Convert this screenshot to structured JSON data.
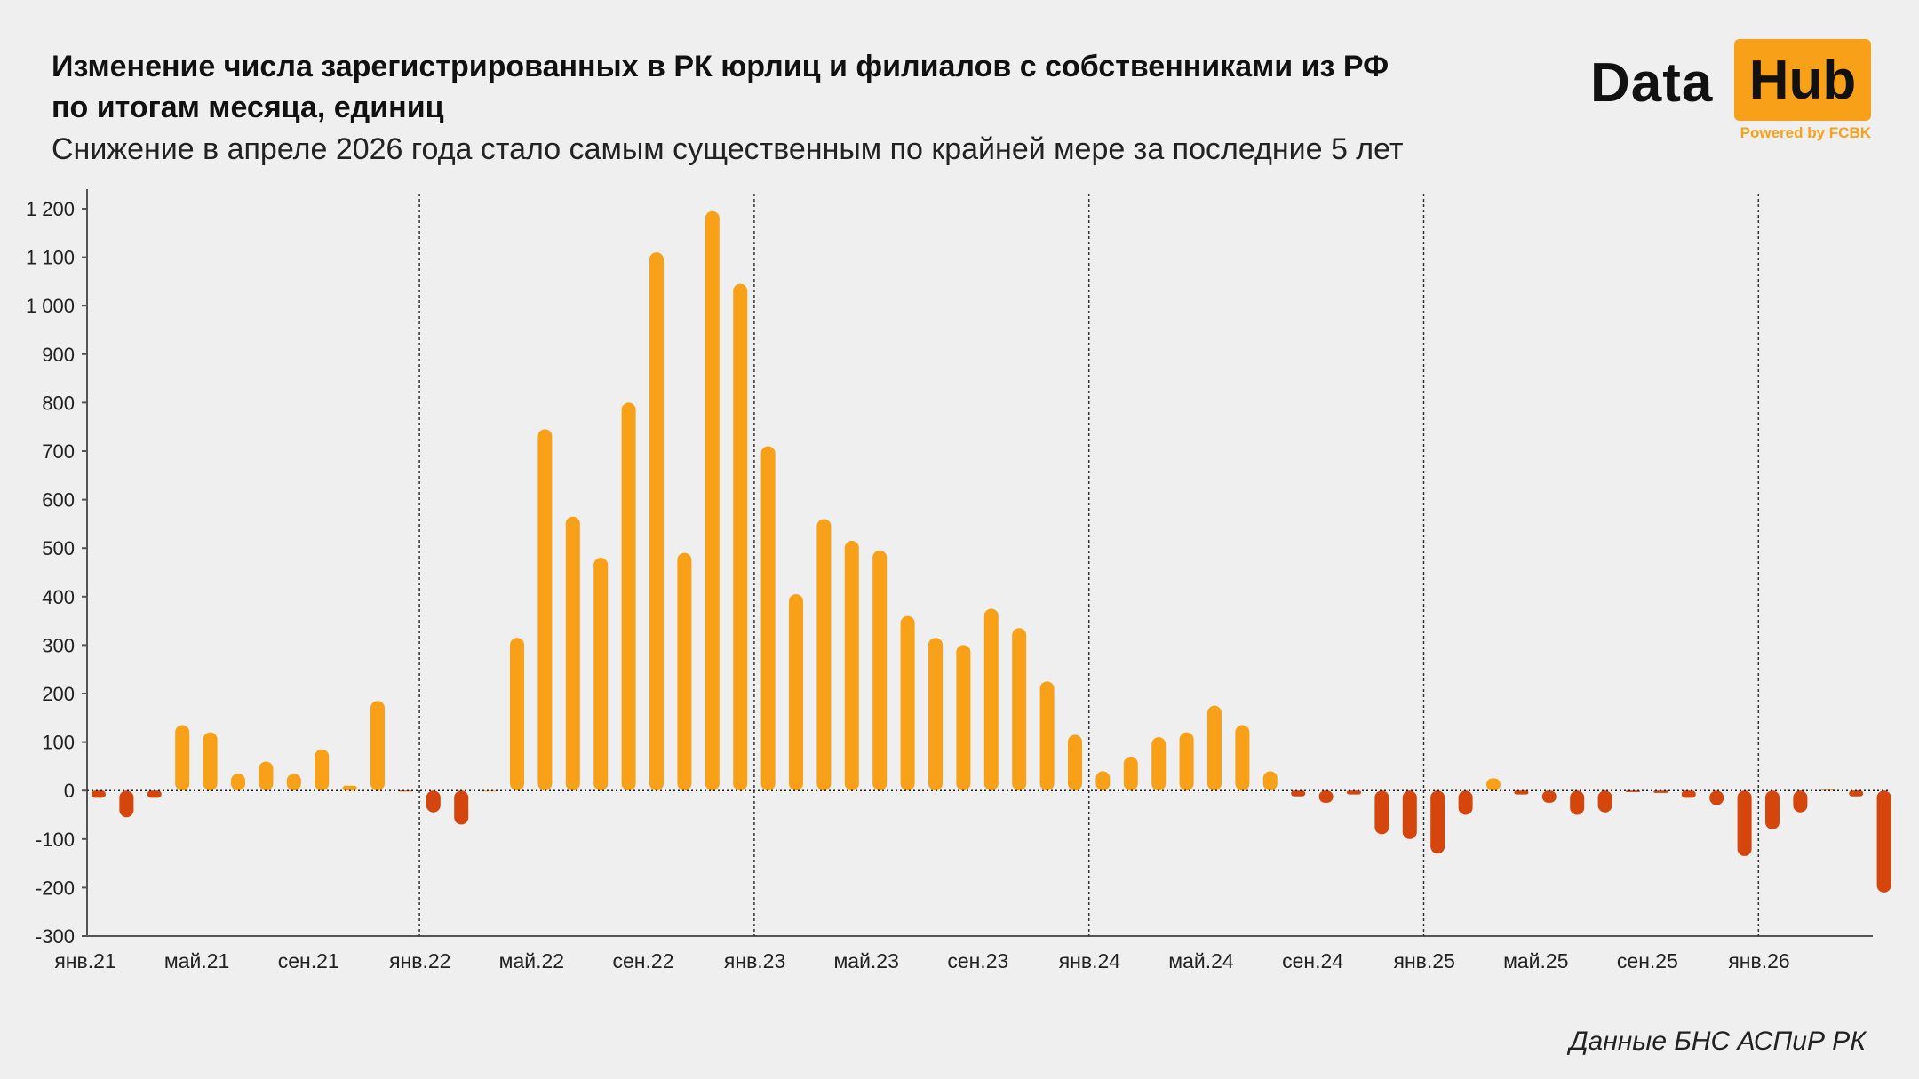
{
  "header": {
    "title_line1": "Изменение числа зарегистрированных в РК юрлиц и филиалов с собственниками из РФ",
    "title_line2": "по итогам месяца, единиц",
    "subtitle": "Снижение в апреле 2026 года стало самым существенным по крайней мере за последние 5 лет"
  },
  "logo": {
    "word1": "Data",
    "word2": "Hub",
    "tagline": "Powered by FCBK"
  },
  "source": "Данные БНС АСПиР РК",
  "colors": {
    "positive": "#f7a018",
    "negative": "#d4460c",
    "background": "#efefef",
    "axis": "#555555"
  },
  "chart_data": {
    "type": "bar",
    "title": "Изменение числа зарегистрированных в РК юрлиц и филиалов с собственниками из РФ по итогам месяца, единиц",
    "ylim": [
      -300,
      1200
    ],
    "yticks": [
      1200,
      1100,
      1000,
      900,
      800,
      700,
      600,
      500,
      400,
      300,
      200,
      100,
      0,
      -100,
      -200,
      -300
    ],
    "ytick_labels": [
      "1 200",
      "1 100",
      "1 000",
      "900",
      "800",
      "700",
      "600",
      "500",
      "400",
      "300",
      "200",
      "100",
      "0",
      "-100",
      "-200",
      "-300"
    ],
    "grid": false,
    "year_separators_at_index": [
      12,
      24,
      36,
      48,
      60
    ],
    "xtick_labels": [
      {
        "index": 0,
        "label": "янв.21"
      },
      {
        "index": 4,
        "label": "май.21"
      },
      {
        "index": 8,
        "label": "сен.21"
      },
      {
        "index": 12,
        "label": "янв.22"
      },
      {
        "index": 16,
        "label": "май.22"
      },
      {
        "index": 20,
        "label": "сен.22"
      },
      {
        "index": 24,
        "label": "янв.23"
      },
      {
        "index": 28,
        "label": "май.23"
      },
      {
        "index": 32,
        "label": "сен.23"
      },
      {
        "index": 36,
        "label": "янв.24"
      },
      {
        "index": 40,
        "label": "май.24"
      },
      {
        "index": 44,
        "label": "сен.24"
      },
      {
        "index": 48,
        "label": "янв.25"
      },
      {
        "index": 52,
        "label": "май.25"
      },
      {
        "index": 56,
        "label": "сен.25"
      },
      {
        "index": 60,
        "label": "янв.26"
      }
    ],
    "values": [
      -15,
      -55,
      -15,
      135,
      120,
      35,
      60,
      35,
      85,
      10,
      185,
      -2,
      -45,
      -70,
      0,
      315,
      745,
      565,
      480,
      800,
      1110,
      490,
      1195,
      1045,
      710,
      405,
      560,
      515,
      495,
      360,
      315,
      300,
      375,
      335,
      225,
      115,
      40,
      70,
      110,
      120,
      175,
      135,
      40,
      -12,
      -25,
      -8,
      -90,
      -100,
      -130,
      -50,
      25,
      -8,
      -25,
      -50,
      -45,
      -3,
      -5,
      -15,
      -30,
      -135,
      -80,
      -45,
      2,
      -12,
      -210
    ]
  }
}
